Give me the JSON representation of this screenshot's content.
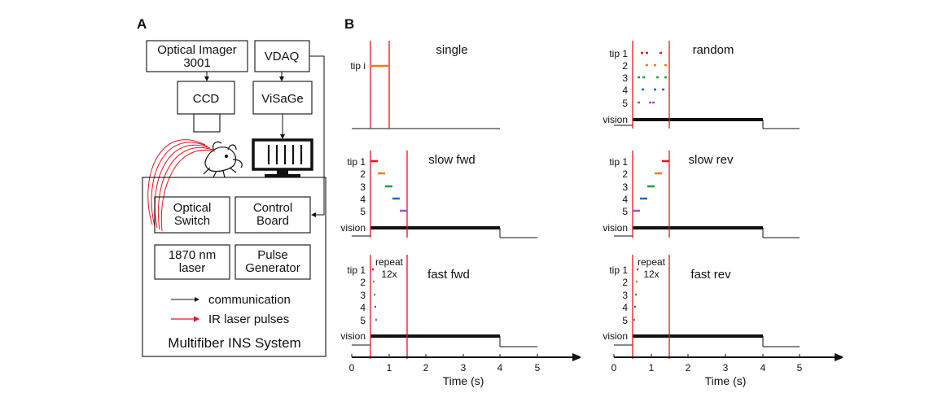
{
  "panel_a": {
    "letter": "A",
    "boxes": {
      "optical_imager_l1": "Optical Imager",
      "optical_imager_l2": "3001",
      "vdaq": "VDAQ",
      "ccd": "CCD",
      "visage": "ViSaGe",
      "optical_switch_l1": "Optical",
      "optical_switch_l2": "Switch",
      "control_board_l1": "Control",
      "control_board_l2": "Board",
      "laser_l1": "1870 nm",
      "laser_l2": "laser",
      "pulse_gen_l1": "Pulse",
      "pulse_gen_l2": "Generator"
    },
    "legend": {
      "communication": "communication",
      "ir_pulses": "IR laser pulses"
    },
    "system_title": "Multifiber INS System",
    "colors": {
      "ir": "#e8141c",
      "comm": "#111111"
    }
  },
  "panel_b": {
    "letter": "B",
    "tip_colors": [
      "#e8141c",
      "#f07d12",
      "#1aa34a",
      "#1c6fc4",
      "#a64fc1"
    ],
    "line_color": "#e8141c",
    "x_axis": {
      "label": "Time (s)",
      "ticks": [
        "0",
        "1",
        "2",
        "3",
        "4",
        "5"
      ]
    },
    "plots": {
      "single": {
        "title": "single",
        "tip_label": "tip i"
      },
      "random": {
        "title": "random",
        "tip_labels": [
          "tip 1",
          "2",
          "3",
          "4",
          "5"
        ],
        "vision_label": "vision"
      },
      "slow_fwd": {
        "title": "slow fwd",
        "tip_labels": [
          "tip 1",
          "2",
          "3",
          "4",
          "5"
        ],
        "vision_label": "vision"
      },
      "slow_rev": {
        "title": "slow rev",
        "tip_labels": [
          "tip 1",
          "2",
          "3",
          "4",
          "5"
        ],
        "vision_label": "vision"
      },
      "fast_fwd": {
        "title": "fast fwd",
        "tip_labels": [
          "tip 1",
          "2",
          "3",
          "4",
          "5"
        ],
        "vision_label": "vision",
        "repeat_l1": "repeat",
        "repeat_l2": "12x"
      },
      "fast_rev": {
        "title": "fast rev",
        "tip_labels": [
          "tip 1",
          "2",
          "3",
          "4",
          "5"
        ],
        "vision_label": "vision",
        "repeat_l1": "repeat",
        "repeat_l2": "12x"
      }
    }
  }
}
